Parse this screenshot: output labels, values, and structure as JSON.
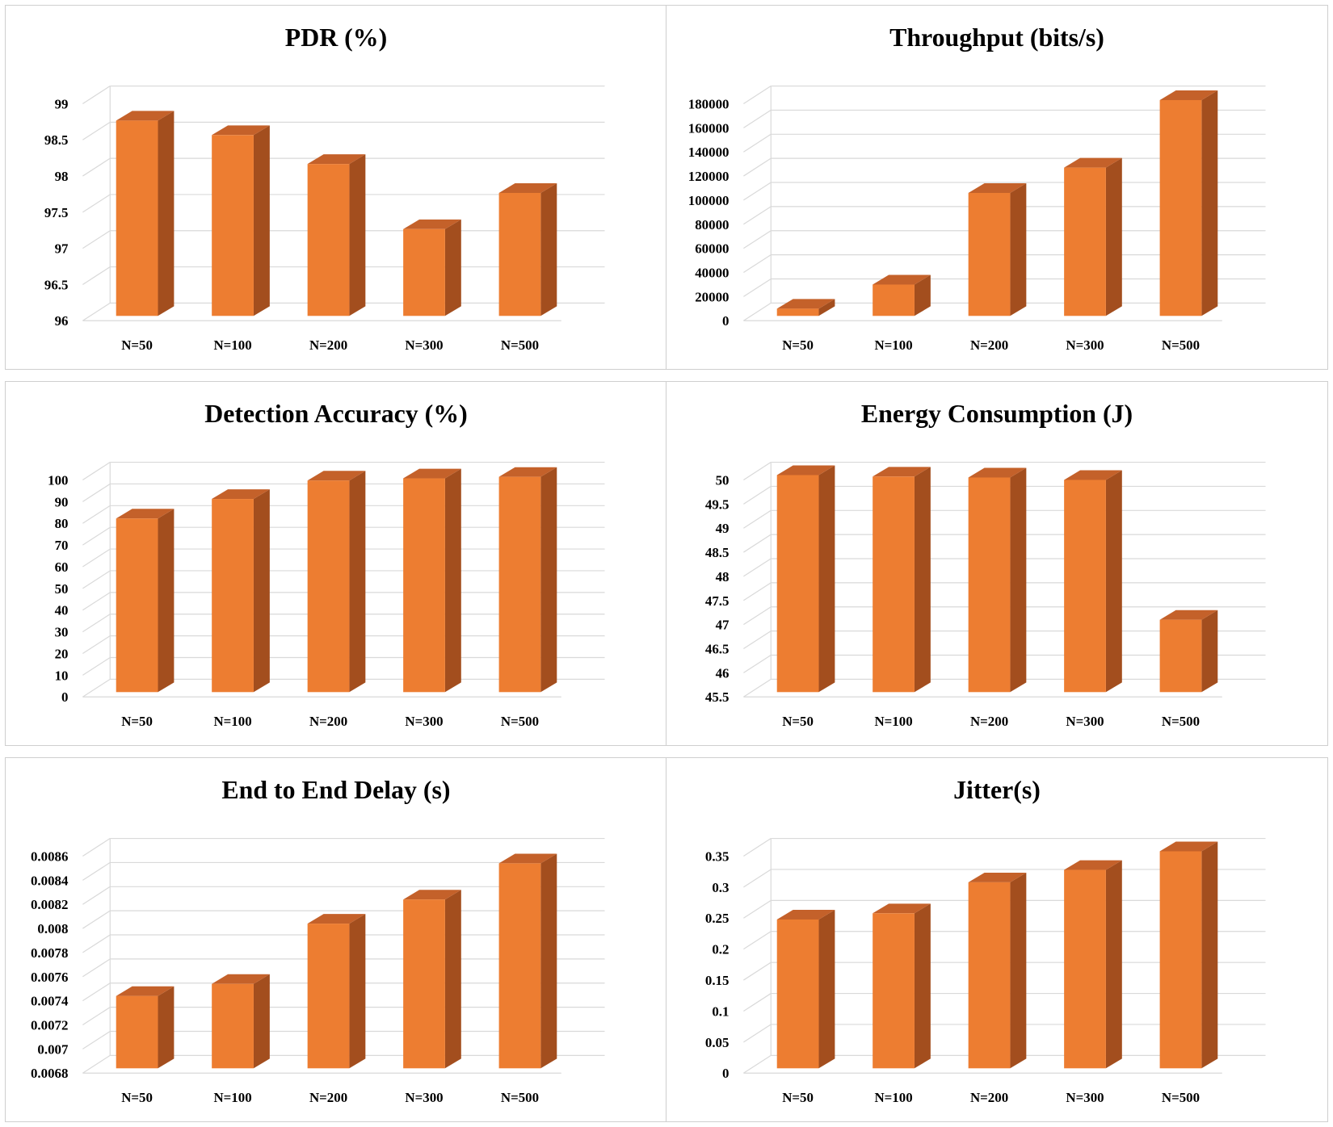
{
  "style": {
    "bar_front": "#ED7D31",
    "bar_side": "#A34E1E",
    "bar_top": "#C4612A",
    "grid": "#d9d9d9",
    "panel_border": "#cfcfcf"
  },
  "chart_data": [
    {
      "type": "bar",
      "title": "PDR (%)",
      "categories": [
        "N=50",
        "N=100",
        "N=200",
        "N=300",
        "N=500"
      ],
      "values": [
        98.7,
        98.5,
        98.1,
        97.2,
        97.7
      ],
      "ylim": [
        96,
        99
      ],
      "yticks": [
        96,
        96.5,
        97,
        97.5,
        98,
        98.5,
        99
      ],
      "ytick_labels": [
        "96",
        "96.5",
        "97",
        "97.5",
        "98",
        "98.5",
        "99"
      ],
      "xlabel": "",
      "ylabel": "",
      "grid": true
    },
    {
      "type": "bar",
      "title": "Throughput (bits/s)",
      "categories": [
        "N=50",
        "N=100",
        "N=200",
        "N=300",
        "N=500"
      ],
      "values": [
        6000,
        26000,
        102000,
        123000,
        179000
      ],
      "ylim": [
        0,
        180000
      ],
      "yticks": [
        0,
        20000,
        40000,
        60000,
        80000,
        100000,
        120000,
        140000,
        160000,
        180000
      ],
      "ytick_labels": [
        "0",
        "20000",
        "40000",
        "60000",
        "80000",
        "100000",
        "120000",
        "140000",
        "160000",
        "180000"
      ],
      "xlabel": "",
      "ylabel": "",
      "grid": true
    },
    {
      "type": "bar",
      "title": "Detection Accuracy (%)",
      "categories": [
        "N=50",
        "N=100",
        "N=200",
        "N=300",
        "N=500"
      ],
      "values": [
        80,
        89,
        97.5,
        98.5,
        99.2
      ],
      "ylim": [
        0,
        100
      ],
      "yticks": [
        0,
        10,
        20,
        30,
        40,
        50,
        60,
        70,
        80,
        90,
        100
      ],
      "ytick_labels": [
        "0",
        "10",
        "20",
        "30",
        "40",
        "50",
        "60",
        "70",
        "80",
        "90",
        "100"
      ],
      "xlabel": "",
      "ylabel": "",
      "grid": true
    },
    {
      "type": "bar",
      "title": "Energy Consumption  (J)",
      "categories": [
        "N=50",
        "N=100",
        "N=200",
        "N=300",
        "N=500"
      ],
      "values": [
        50,
        49.97,
        49.95,
        49.9,
        47
      ],
      "ylim": [
        45.5,
        50
      ],
      "yticks": [
        45.5,
        46,
        46.5,
        47,
        47.5,
        48,
        48.5,
        49,
        49.5,
        50
      ],
      "ytick_labels": [
        "45.5",
        "46",
        "46.5",
        "47",
        "47.5",
        "48",
        "48.5",
        "49",
        "49.5",
        "50"
      ],
      "xlabel": "",
      "ylabel": "",
      "grid": true
    },
    {
      "type": "bar",
      "title": "End to End Delay (s)",
      "categories": [
        "N=50",
        "N=100",
        "N=200",
        "N=300",
        "N=500"
      ],
      "values": [
        0.0074,
        0.0075,
        0.008,
        0.0082,
        0.0085
      ],
      "ylim": [
        0.0068,
        0.0086
      ],
      "yticks": [
        0.0068,
        0.007,
        0.0072,
        0.0074,
        0.0076,
        0.0078,
        0.008,
        0.0082,
        0.0084,
        0.0086
      ],
      "ytick_labels": [
        "0.0068",
        "0.007",
        "0.0072",
        "0.0074",
        "0.0076",
        "0.0078",
        "0.008",
        "0.0082",
        "0.0084",
        "0.0086"
      ],
      "xlabel": "",
      "ylabel": "",
      "grid": true
    },
    {
      "type": "bar",
      "title": "Jitter(s)",
      "categories": [
        "N=50",
        "N=100",
        "N=200",
        "N=300",
        "N=500"
      ],
      "values": [
        0.24,
        0.25,
        0.3,
        0.32,
        0.35
      ],
      "ylim": [
        0,
        0.35
      ],
      "yticks": [
        0,
        0.05,
        0.1,
        0.15,
        0.2,
        0.25,
        0.3,
        0.35
      ],
      "ytick_labels": [
        "0",
        "0.05",
        "0.1",
        "0.15",
        "0.2",
        "0.25",
        "0.3",
        "0.35"
      ],
      "xlabel": "",
      "ylabel": "",
      "grid": true
    }
  ]
}
